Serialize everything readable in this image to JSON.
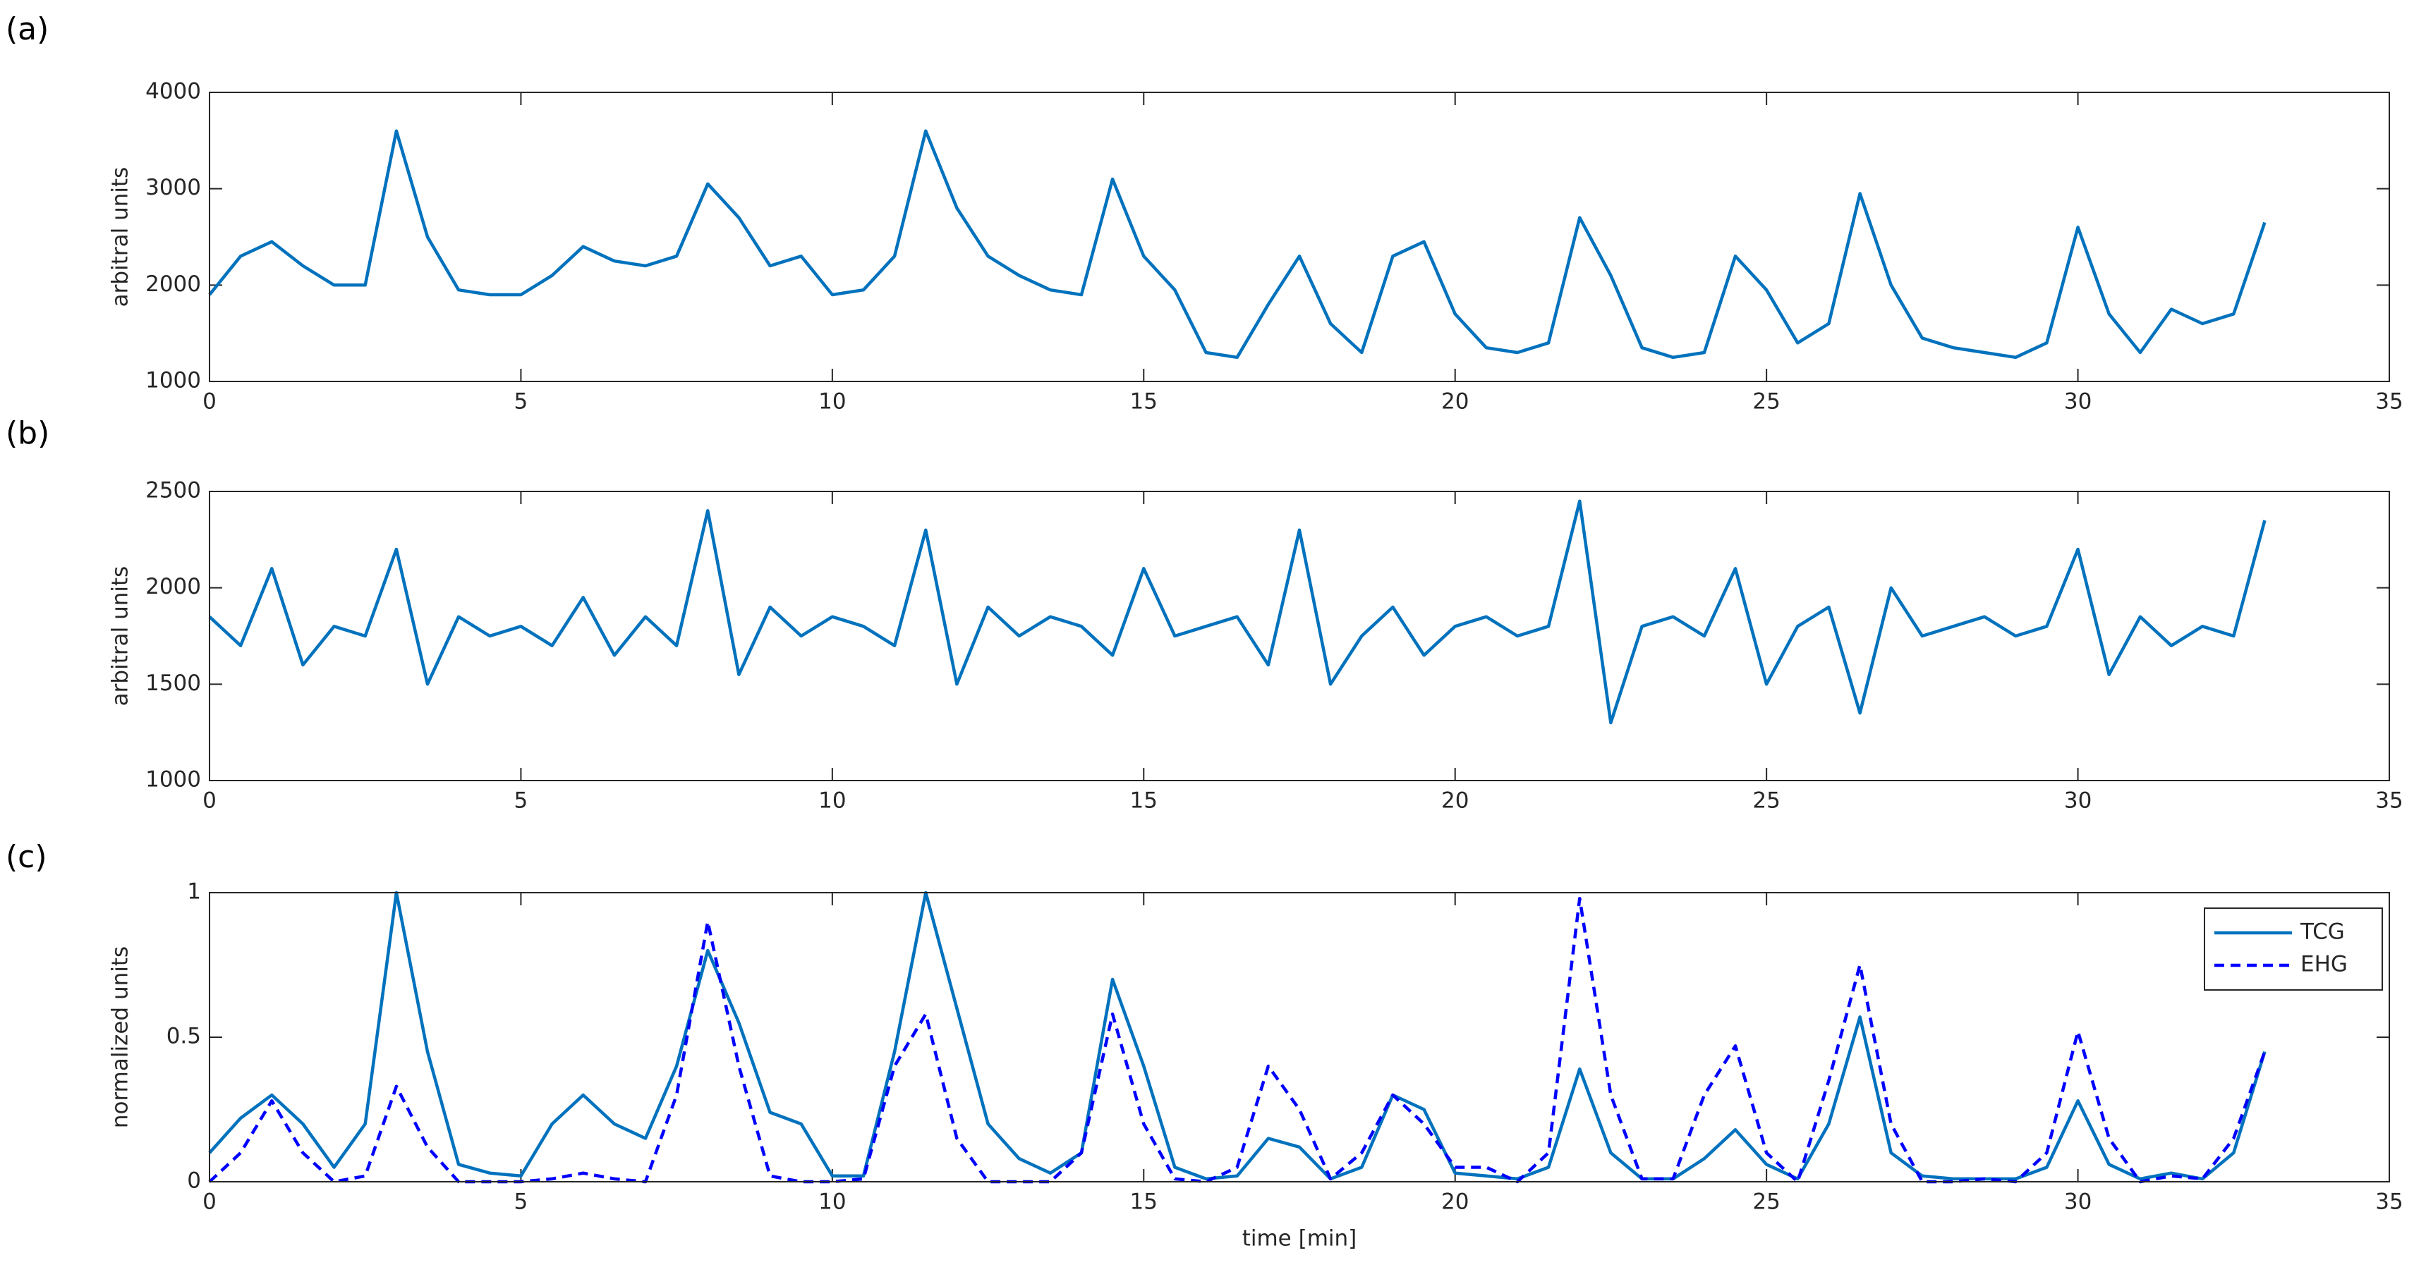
{
  "chart_data": [
    {
      "type": "line",
      "title": "(a)",
      "ylabel": "arbitral units",
      "xlim": [
        0,
        35
      ],
      "xticks": [
        0,
        5,
        10,
        15,
        20,
        25,
        30,
        35
      ],
      "ylim": [
        1000,
        4000
      ],
      "yticks": [
        1000,
        2000,
        3000,
        4000
      ],
      "x": [
        0,
        0.5,
        1,
        1.5,
        2,
        2.5,
        3,
        3.5,
        4,
        4.5,
        5,
        5.5,
        6,
        6.5,
        7,
        7.5,
        8,
        8.5,
        9,
        9.5,
        10,
        10.5,
        11,
        11.5,
        12,
        12.5,
        13,
        13.5,
        14,
        14.5,
        15,
        15.5,
        16,
        16.5,
        17,
        17.5,
        18,
        18.5,
        19,
        19.5,
        20,
        20.5,
        21,
        21.5,
        22,
        22.5,
        23,
        23.5,
        24,
        24.5,
        25,
        25.5,
        26,
        26.5,
        27,
        27.5,
        28,
        28.5,
        29,
        29.5,
        30,
        30.5,
        31,
        31.5,
        32,
        32.5,
        33
      ],
      "series": [
        {
          "color": "#0072bd",
          "style": "solid",
          "values": [
            1900,
            2300,
            2450,
            2200,
            2000,
            2000,
            3600,
            2500,
            1950,
            1900,
            1900,
            2100,
            2400,
            2250,
            2200,
            2300,
            3050,
            2700,
            2200,
            2300,
            1900,
            1950,
            2300,
            3600,
            2800,
            2300,
            2100,
            1950,
            1900,
            3100,
            2300,
            1950,
            1300,
            1250,
            1800,
            2300,
            1600,
            1300,
            2300,
            2450,
            1700,
            1350,
            1300,
            1400,
            2700,
            2100,
            1350,
            1250,
            1300,
            2300,
            1950,
            1400,
            1600,
            2950,
            2000,
            1450,
            1350,
            1300,
            1250,
            1400,
            2600,
            1700,
            1300,
            1750,
            1600,
            1700,
            2650
          ]
        }
      ]
    },
    {
      "type": "line",
      "title": "(b)",
      "ylabel": "arbitral units",
      "xlim": [
        0,
        35
      ],
      "xticks": [
        0,
        5,
        10,
        15,
        20,
        25,
        30,
        35
      ],
      "ylim": [
        1000,
        2500
      ],
      "yticks": [
        1000,
        1500,
        2000,
        2500
      ],
      "x": [
        0,
        0.5,
        1,
        1.5,
        2,
        2.5,
        3,
        3.5,
        4,
        4.5,
        5,
        5.5,
        6,
        6.5,
        7,
        7.5,
        8,
        8.5,
        9,
        9.5,
        10,
        10.5,
        11,
        11.5,
        12,
        12.5,
        13,
        13.5,
        14,
        14.5,
        15,
        15.5,
        16,
        16.5,
        17,
        17.5,
        18,
        18.5,
        19,
        19.5,
        20,
        20.5,
        21,
        21.5,
        22,
        22.5,
        23,
        23.5,
        24,
        24.5,
        25,
        25.5,
        26,
        26.5,
        27,
        27.5,
        28,
        28.5,
        29,
        29.5,
        30,
        30.5,
        31,
        31.5,
        32,
        32.5,
        33
      ],
      "series": [
        {
          "color": "#0072bd",
          "style": "solid",
          "values": [
            1850,
            1700,
            2100,
            1600,
            1800,
            1750,
            2200,
            1500,
            1850,
            1750,
            1800,
            1700,
            1950,
            1650,
            1850,
            1700,
            2400,
            1550,
            1900,
            1750,
            1850,
            1800,
            1700,
            2300,
            1500,
            1900,
            1750,
            1850,
            1800,
            1650,
            2100,
            1750,
            1800,
            1850,
            1600,
            2300,
            1500,
            1750,
            1900,
            1650,
            1800,
            1850,
            1750,
            1800,
            2450,
            1300,
            1800,
            1850,
            1750,
            2100,
            1500,
            1800,
            1900,
            1350,
            2000,
            1750,
            1800,
            1850,
            1750,
            1800,
            2200,
            1550,
            1850,
            1700,
            1800,
            1750,
            2350
          ]
        }
      ]
    },
    {
      "type": "line",
      "title": "(c)",
      "ylabel": "normalized units",
      "xlabel": "time [min]",
      "xlim": [
        0,
        35
      ],
      "xticks": [
        0,
        5,
        10,
        15,
        20,
        25,
        30,
        35
      ],
      "ylim": [
        0,
        1
      ],
      "yticks": [
        0,
        0.5,
        1
      ],
      "legend": "upper right",
      "x": [
        0,
        0.5,
        1,
        1.5,
        2,
        2.5,
        3,
        3.5,
        4,
        4.5,
        5,
        5.5,
        6,
        6.5,
        7,
        7.5,
        8,
        8.5,
        9,
        9.5,
        10,
        10.5,
        11,
        11.5,
        12,
        12.5,
        13,
        13.5,
        14,
        14.5,
        15,
        15.5,
        16,
        16.5,
        17,
        17.5,
        18,
        18.5,
        19,
        19.5,
        20,
        20.5,
        21,
        21.5,
        22,
        22.5,
        23,
        23.5,
        24,
        24.5,
        25,
        25.5,
        26,
        26.5,
        27,
        27.5,
        28,
        28.5,
        29,
        29.5,
        30,
        30.5,
        31,
        31.5,
        32,
        32.5,
        33
      ],
      "series": [
        {
          "name": "TCG",
          "color": "#0072bd",
          "style": "solid",
          "values": [
            0.1,
            0.22,
            0.3,
            0.2,
            0.05,
            0.2,
            1.0,
            0.45,
            0.06,
            0.03,
            0.02,
            0.2,
            0.3,
            0.2,
            0.15,
            0.4,
            0.8,
            0.55,
            0.24,
            0.2,
            0.02,
            0.02,
            0.45,
            1.0,
            0.6,
            0.2,
            0.08,
            0.03,
            0.1,
            0.7,
            0.4,
            0.05,
            0.01,
            0.02,
            0.15,
            0.12,
            0.01,
            0.05,
            0.3,
            0.25,
            0.03,
            0.02,
            0.01,
            0.05,
            0.39,
            0.1,
            0.01,
            0.01,
            0.08,
            0.18,
            0.06,
            0.01,
            0.2,
            0.57,
            0.1,
            0.02,
            0.01,
            0.01,
            0.01,
            0.05,
            0.28,
            0.06,
            0.01,
            0.03,
            0.01,
            0.1,
            0.45
          ]
        },
        {
          "name": "EHG",
          "color": "#0000ff",
          "style": "dashed",
          "values": [
            0,
            0.1,
            0.28,
            0.1,
            0,
            0.02,
            0.33,
            0.12,
            0,
            0,
            0,
            0.01,
            0.03,
            0.01,
            0,
            0.3,
            0.9,
            0.4,
            0.02,
            0,
            0,
            0.01,
            0.4,
            0.58,
            0.15,
            0,
            0,
            0,
            0.1,
            0.58,
            0.2,
            0.01,
            0,
            0.05,
            0.4,
            0.25,
            0.01,
            0.1,
            0.3,
            0.2,
            0.05,
            0.05,
            0,
            0.1,
            0.98,
            0.3,
            0.01,
            0.01,
            0.3,
            0.47,
            0.1,
            0,
            0.35,
            0.75,
            0.2,
            0,
            0,
            0.01,
            0,
            0.1,
            0.52,
            0.15,
            0,
            0.02,
            0.01,
            0.15,
            0.45
          ]
        }
      ]
    }
  ]
}
